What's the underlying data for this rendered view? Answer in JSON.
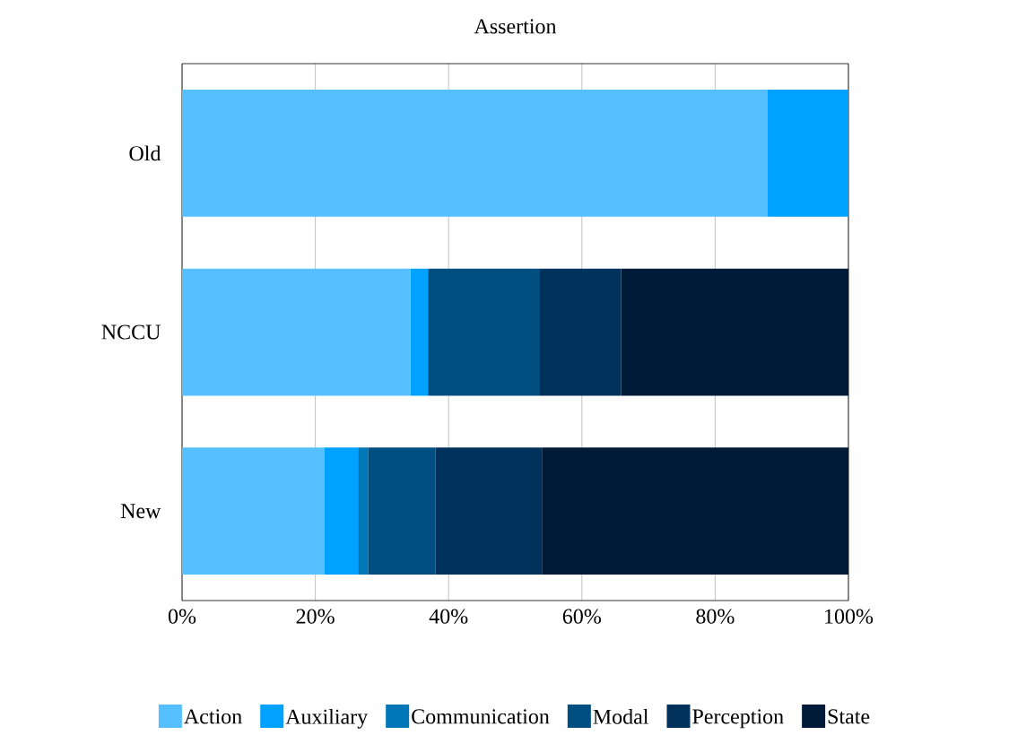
{
  "chart_data": {
    "type": "bar",
    "orientation": "horizontal",
    "stacked": true,
    "title": "Assertion",
    "categories": [
      "Old",
      "NCCU",
      "New"
    ],
    "series": [
      {
        "name": "Action",
        "color": "#56bfff",
        "values": [
          87.8,
          34.3,
          21.4
        ]
      },
      {
        "name": "Auxiliary",
        "color": "#00a2ff",
        "values": [
          12.2,
          2.6,
          5.0
        ]
      },
      {
        "name": "Communication",
        "color": "#0077b6",
        "values": [
          0,
          0,
          1.5
        ]
      },
      {
        "name": "Modal",
        "color": "#004f80",
        "values": [
          0,
          16.8,
          10.1
        ]
      },
      {
        "name": "Perception",
        "color": "#00325c",
        "values": [
          0,
          12.2,
          16.0
        ]
      },
      {
        "name": "State",
        "color": "#001a38",
        "values": [
          0,
          34.1,
          46.0
        ]
      }
    ],
    "xlim": [
      0,
      100
    ],
    "xticks": [
      {
        "value": 0,
        "label": "0%"
      },
      {
        "value": 20,
        "label": "20%"
      },
      {
        "value": 40,
        "label": "40%"
      },
      {
        "value": 60,
        "label": "60%"
      },
      {
        "value": 80,
        "label": "80%"
      },
      {
        "value": 100,
        "label": "100%"
      }
    ],
    "grid": "x",
    "legend": "bottom"
  }
}
